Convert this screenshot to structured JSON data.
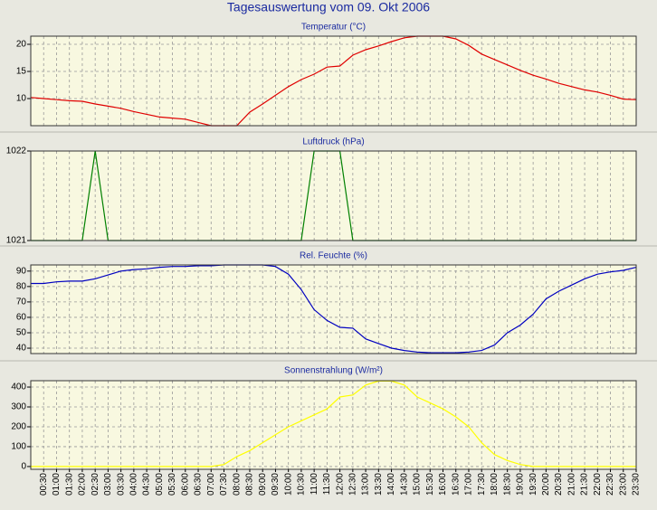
{
  "title": "Tagesauswertung vom 09. Okt 2006",
  "chart_data": [
    {
      "type": "line",
      "title": "Temperatur (°C)",
      "color": "#e00000",
      "values": [
        10.2,
        10.0,
        9.8,
        9.6,
        9.5,
        9.0,
        8.6,
        8.2,
        7.6,
        7.1,
        6.6,
        6.4,
        6.2,
        5.6,
        5.0,
        5.0,
        5.0,
        7.5,
        9.0,
        10.6,
        12.2,
        13.5,
        14.5,
        15.8,
        16.0,
        18.0,
        19.0,
        19.7,
        20.5,
        21.2,
        21.5,
        21.5,
        21.5,
        21.0,
        19.8,
        18.2,
        17.2,
        16.2,
        15.2,
        14.3,
        13.6,
        12.8,
        12.2,
        11.6,
        11.2,
        10.6,
        9.9,
        9.8
      ],
      "ylim": [
        5,
        21.5
      ],
      "yticks": [
        10,
        15,
        20
      ],
      "grid": true
    },
    {
      "type": "line",
      "title": "Luftdruck (hPa)",
      "color": "#008000",
      "values": [
        1021,
        1021,
        1021,
        1021,
        1021,
        1022,
        1021,
        1021,
        1021,
        1021,
        1021,
        1021,
        1021,
        1021,
        1021,
        1021,
        1021,
        1021,
        1021,
        1021,
        1021,
        1021,
        1022,
        1022,
        1022,
        1021,
        1021,
        1021,
        1021,
        1021,
        1021,
        1021,
        1021,
        1021,
        1021,
        1021,
        1021,
        1021,
        1021,
        1021,
        1021,
        1021,
        1021,
        1021,
        1021,
        1021,
        1021,
        1021
      ],
      "ylim": [
        1021,
        1022
      ],
      "yticks": [
        1021,
        1022
      ],
      "grid": true
    },
    {
      "type": "line",
      "title": "Rel. Feuchte (%)",
      "color": "#0000c0",
      "values": [
        82,
        82,
        83,
        83.5,
        83.5,
        85,
        87.5,
        90,
        91,
        91.5,
        92.5,
        93,
        93,
        93.5,
        93.5,
        94,
        94,
        94,
        94,
        93,
        88,
        78,
        65,
        58,
        53.5,
        53,
        46,
        43,
        40,
        38.5,
        37.5,
        37,
        37,
        37,
        37.5,
        38.5,
        42,
        50,
        55,
        62,
        72,
        77,
        81,
        85,
        88,
        89.5,
        90.5,
        92.5
      ],
      "ylim": [
        36.5,
        94
      ],
      "yticks": [
        40,
        50,
        60,
        70,
        80,
        90
      ],
      "grid": true
    },
    {
      "type": "line",
      "title": "Sonnenstrahlung (W/m²)",
      "color": "#ffff00",
      "categories": [
        null,
        "00:30",
        "01:00",
        "01:30",
        "02:00",
        "02:30",
        "03:00",
        "03:30",
        "04:00",
        "04:30",
        "05:00",
        "05:30",
        "06:00",
        "06:30",
        "07:00",
        "07:30",
        "08:00",
        "08:30",
        "09:00",
        "09:30",
        "10:00",
        "10:30",
        "11:00",
        "11:30",
        "12:00",
        "12:30",
        "13:00",
        "13:30",
        "14:00",
        "14:30",
        "15:00",
        "15:30",
        "16:00",
        "16:30",
        "17:00",
        "17:30",
        "18:00",
        "18:30",
        "19:00",
        "19:30",
        "20:00",
        "20:30",
        "21:00",
        "21:30",
        "22:00",
        "22:30",
        "23:00",
        "23:30"
      ],
      "values": [
        0,
        0,
        0,
        0,
        0,
        0,
        0,
        0,
        0,
        0,
        0,
        0,
        0,
        0,
        0,
        10,
        50,
        80,
        120,
        160,
        200,
        230,
        260,
        290,
        350,
        360,
        410,
        430,
        430,
        410,
        350,
        320,
        290,
        250,
        200,
        120,
        60,
        30,
        10,
        0,
        0,
        0,
        0,
        0,
        0,
        0,
        0,
        0
      ],
      "ylim": [
        -14,
        432
      ],
      "yticks": [
        0,
        100,
        200,
        300,
        400
      ],
      "grid": true
    }
  ]
}
